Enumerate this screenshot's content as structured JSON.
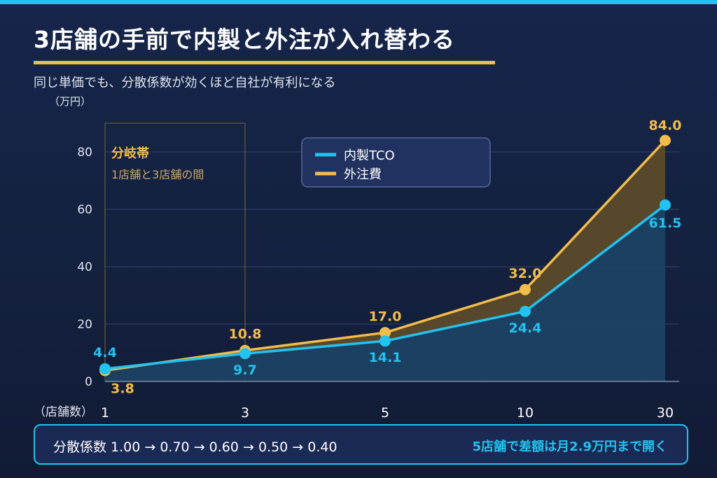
{
  "title": "3店舗の手前で内製と外注が入れ替わる",
  "subtitle": "同じ単価でも、分散係数が効くほど自社が有利になる",
  "unit_label": "（万円）",
  "x_axis_label": "（店舗数）",
  "footer": {
    "left_text": "分散係数 1.00 → 0.70 → 0.60 → 0.50 → 0.40",
    "right_text": "5店舗で差額は月2.9万円まで開く"
  },
  "colors": {
    "inhouse": "#22c3f0",
    "outsource": "#f2bd4a",
    "gap_fill": "#5b4a2a",
    "inhouse_fill": "#1d4466",
    "grid": "#33446b"
  },
  "chart_data": {
    "type": "line",
    "categories": [
      "1",
      "3",
      "5",
      "10",
      "30"
    ],
    "series": [
      {
        "name": "内製TCO",
        "values": [
          4.4,
          9.7,
          14.1,
          24.4,
          61.5
        ],
        "labels": [
          "4.4",
          "9.7",
          "14.1",
          "24.4",
          "61.5"
        ]
      },
      {
        "name": "外注費",
        "values": [
          3.8,
          10.8,
          17.0,
          32.0,
          84.0
        ],
        "labels": [
          "3.8",
          "10.8",
          "17.0",
          "32.0",
          "84.0"
        ]
      }
    ],
    "ylim": [
      0,
      88
    ],
    "yticks": [
      0,
      20,
      40,
      60,
      80
    ],
    "grid": true,
    "legend_placement": "top-center",
    "annotation": {
      "title": "分岐帯",
      "text": "1店舗と3店舗の間",
      "range": [
        "1",
        "3"
      ]
    }
  }
}
